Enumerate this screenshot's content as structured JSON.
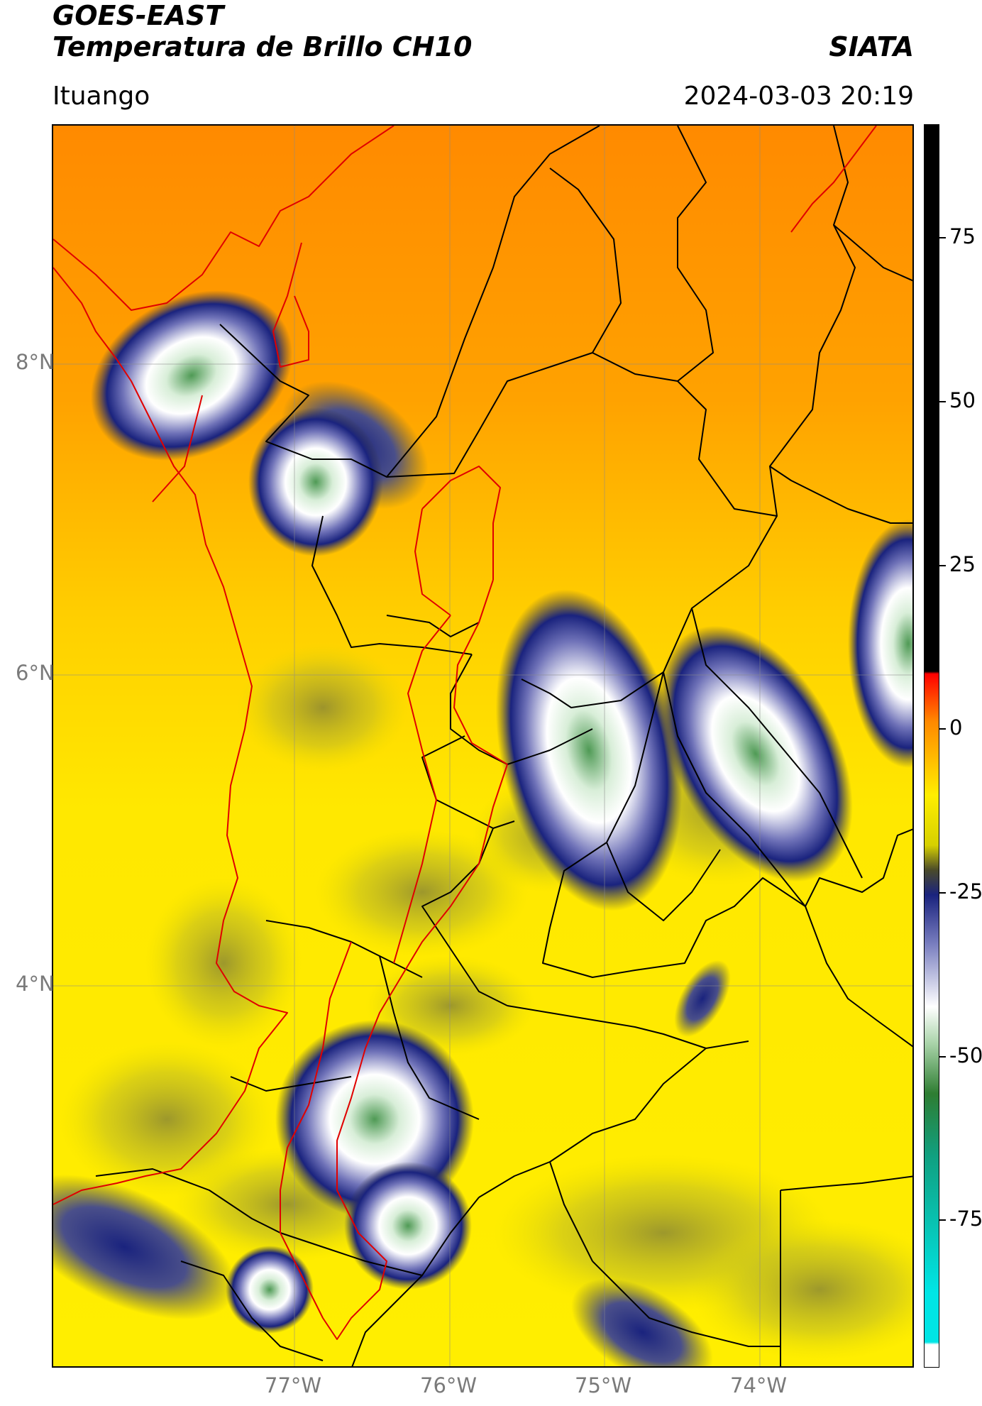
{
  "header": {
    "title_line1": "GOES-EAST",
    "title_line2": "Temperatura de Brillo CH10",
    "brand": "SIATA",
    "location": "Ituango",
    "datetime": "2024-03-03 20:19"
  },
  "map": {
    "lon_labels": [
      "77°W",
      "76°W",
      "75°W",
      "74°W"
    ],
    "lat_labels": [
      "8°N",
      "6°N",
      "4°N"
    ],
    "background_color": "#FFDD00",
    "boundary_colors": {
      "country": "#000000",
      "region_of_interest": "#E00000"
    }
  },
  "colorbar": {
    "ticks": [
      "75",
      "50",
      "25",
      "0",
      "-25",
      "-50",
      "-75"
    ],
    "colors": [
      "#000000",
      "#ff0000",
      "#ff8800",
      "#ffee00",
      "#4a4a2a",
      "#1a237e",
      "#ffffff",
      "#2e7d32",
      "#00e5e5"
    ]
  }
}
